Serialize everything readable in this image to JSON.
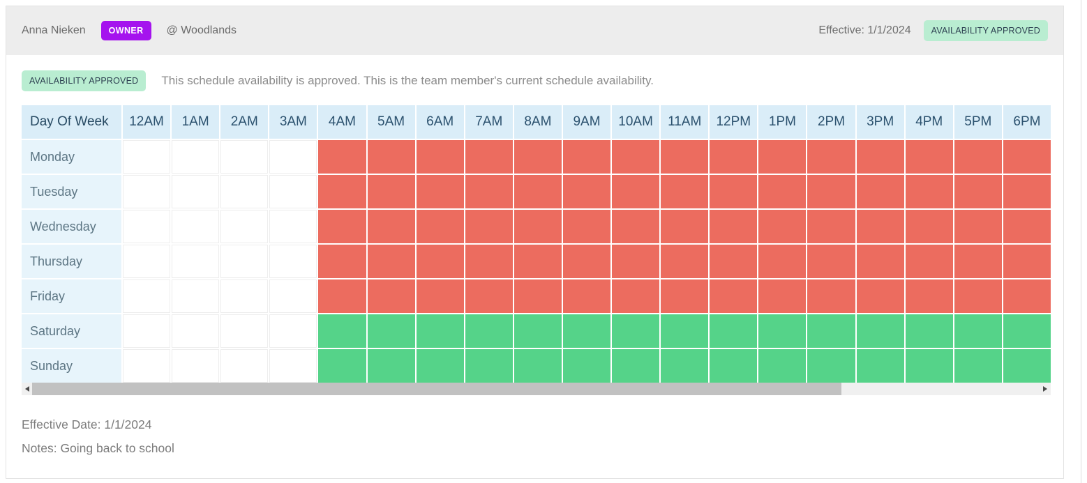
{
  "header": {
    "name": "Anna Nieken",
    "role_badge": "OWNER",
    "location": "@ Woodlands",
    "effective": "Effective: 1/1/2024",
    "status_badge": "AVAILABILITY APPROVED"
  },
  "banner": {
    "badge": "AVAILABILITY APPROVED",
    "message": "This schedule availability is approved. This is the team member's current schedule availability."
  },
  "schedule": {
    "columns": [
      "Day Of Week",
      "12AM",
      "1AM",
      "2AM",
      "3AM",
      "4AM",
      "5AM",
      "6AM",
      "7AM",
      "8AM",
      "9AM",
      "10AM",
      "11AM",
      "12PM",
      "1PM",
      "2PM",
      "3PM",
      "4PM",
      "5PM",
      "6PM"
    ],
    "rows": [
      {
        "day": "Monday",
        "cells": [
          "none",
          "none",
          "none",
          "none",
          "unavailable",
          "unavailable",
          "unavailable",
          "unavailable",
          "unavailable",
          "unavailable",
          "unavailable",
          "unavailable",
          "unavailable",
          "unavailable",
          "unavailable",
          "unavailable",
          "unavailable",
          "unavailable",
          "unavailable"
        ]
      },
      {
        "day": "Tuesday",
        "cells": [
          "none",
          "none",
          "none",
          "none",
          "unavailable",
          "unavailable",
          "unavailable",
          "unavailable",
          "unavailable",
          "unavailable",
          "unavailable",
          "unavailable",
          "unavailable",
          "unavailable",
          "unavailable",
          "unavailable",
          "unavailable",
          "unavailable",
          "unavailable"
        ]
      },
      {
        "day": "Wednesday",
        "cells": [
          "none",
          "none",
          "none",
          "none",
          "unavailable",
          "unavailable",
          "unavailable",
          "unavailable",
          "unavailable",
          "unavailable",
          "unavailable",
          "unavailable",
          "unavailable",
          "unavailable",
          "unavailable",
          "unavailable",
          "unavailable",
          "unavailable",
          "unavailable"
        ]
      },
      {
        "day": "Thursday",
        "cells": [
          "none",
          "none",
          "none",
          "none",
          "unavailable",
          "unavailable",
          "unavailable",
          "unavailable",
          "unavailable",
          "unavailable",
          "unavailable",
          "unavailable",
          "unavailable",
          "unavailable",
          "unavailable",
          "unavailable",
          "unavailable",
          "unavailable",
          "unavailable"
        ]
      },
      {
        "day": "Friday",
        "cells": [
          "none",
          "none",
          "none",
          "none",
          "unavailable",
          "unavailable",
          "unavailable",
          "unavailable",
          "unavailable",
          "unavailable",
          "unavailable",
          "unavailable",
          "unavailable",
          "unavailable",
          "unavailable",
          "unavailable",
          "unavailable",
          "unavailable",
          "unavailable"
        ]
      },
      {
        "day": "Saturday",
        "cells": [
          "none",
          "none",
          "none",
          "none",
          "available",
          "available",
          "available",
          "available",
          "available",
          "available",
          "available",
          "available",
          "available",
          "available",
          "available",
          "available",
          "available",
          "available",
          "available"
        ]
      },
      {
        "day": "Sunday",
        "cells": [
          "none",
          "none",
          "none",
          "none",
          "available",
          "available",
          "available",
          "available",
          "available",
          "available",
          "available",
          "available",
          "available",
          "available",
          "available",
          "available",
          "available",
          "available",
          "available"
        ]
      }
    ]
  },
  "footer": {
    "effective_date": "Effective Date: 1/1/2024",
    "notes": "Notes: Going back to school"
  },
  "colors": {
    "owner_badge_bg": "#A513EE",
    "approved_badge_bg": "#B9EDD1",
    "unavailable_cell": "#EC6C5F",
    "available_cell": "#55D389",
    "header_bar_bg": "#EDEDED",
    "table_header_bg": "#DAEDF8",
    "day_cell_bg": "#E7F4FB"
  }
}
